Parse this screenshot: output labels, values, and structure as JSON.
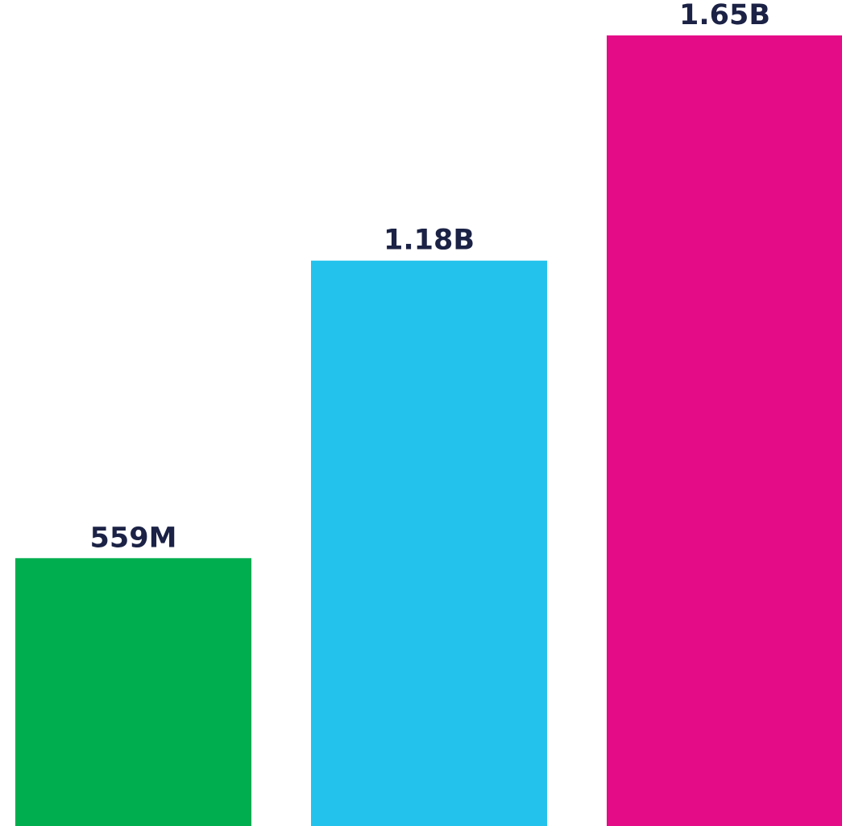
{
  "chart_data": {
    "type": "bar",
    "categories": [
      "",
      "",
      ""
    ],
    "values": [
      559000000,
      1180000000,
      1650000000
    ],
    "data_labels": [
      "559M",
      "1.18B",
      "1.65B"
    ],
    "colors": [
      "#00AE4F",
      "#23C2EC",
      "#E50D87"
    ],
    "label_color": "#1B2245",
    "ylim": [
      0,
      1650000000
    ],
    "grid": false,
    "legend": "none",
    "title": "",
    "xlabel": "",
    "ylabel": ""
  }
}
